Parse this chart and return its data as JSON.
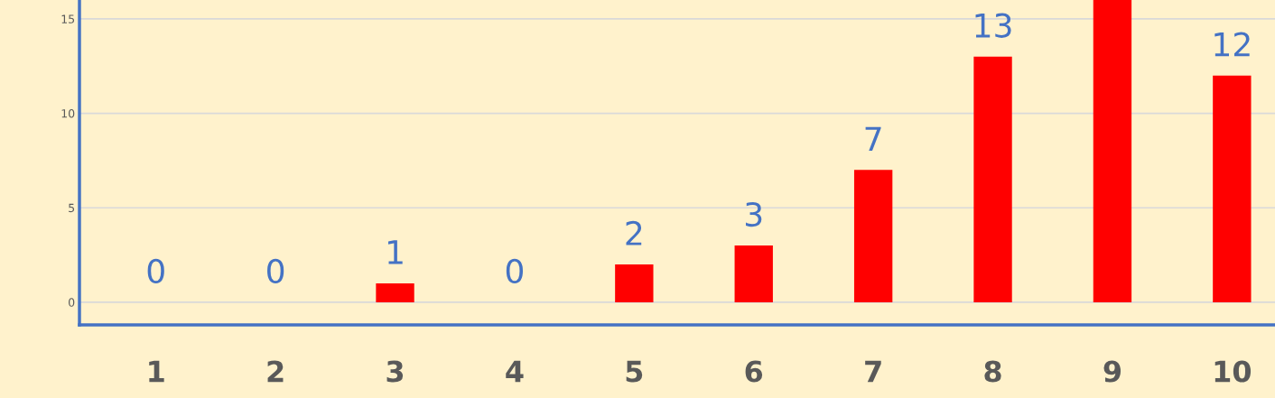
{
  "chart_data": {
    "type": "bar",
    "categories": [
      "1",
      "2",
      "3",
      "4",
      "5",
      "6",
      "7",
      "8",
      "9",
      "10"
    ],
    "values": [
      0,
      0,
      1,
      0,
      2,
      3,
      7,
      13,
      16,
      12
    ],
    "value_labels": [
      "0",
      "0",
      "1",
      "0",
      "2",
      "3",
      "7",
      "13",
      null,
      "12"
    ],
    "color": "#ff0000",
    "ylim": [
      -1.2,
      16
    ],
    "yticks": [
      0,
      5,
      10,
      15
    ],
    "grid": "y"
  }
}
